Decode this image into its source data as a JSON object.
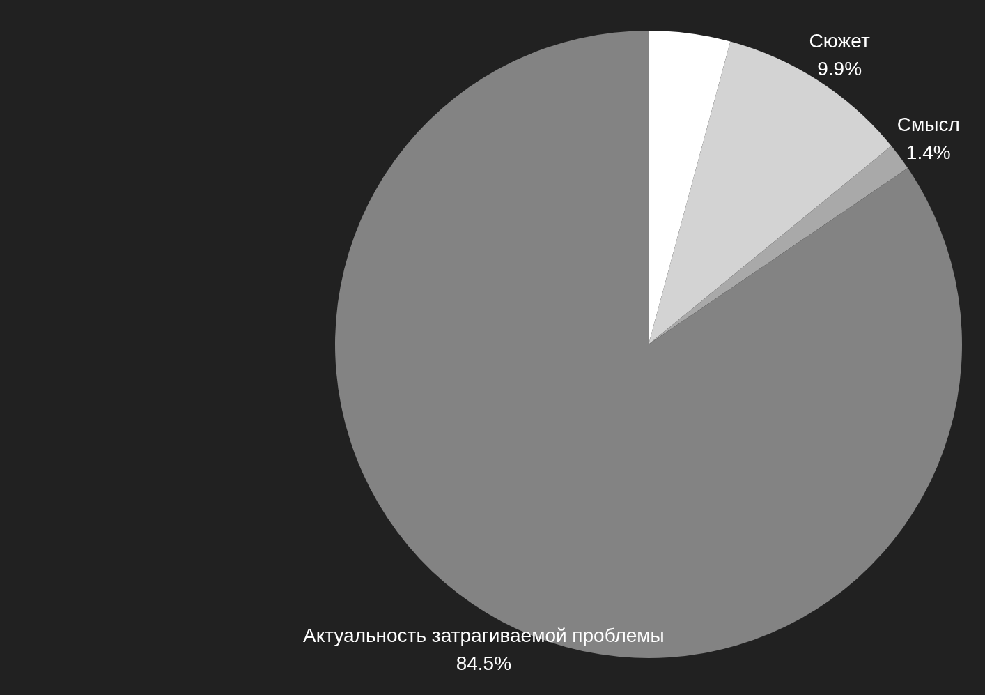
{
  "chart_data": {
    "type": "pie",
    "categories": [
      null,
      "Сюжет",
      "Смысл",
      "Актуальность затрагиваемой проблемы"
    ],
    "values": [
      4.2,
      9.9,
      1.4,
      84.5
    ],
    "colors": [
      "#ffffff",
      "#d3d3d3",
      "#a9a9a9",
      "#838383"
    ],
    "value_labels": [
      null,
      "9.9%",
      "1.4%",
      "84.5%"
    ],
    "legend": false
  }
}
